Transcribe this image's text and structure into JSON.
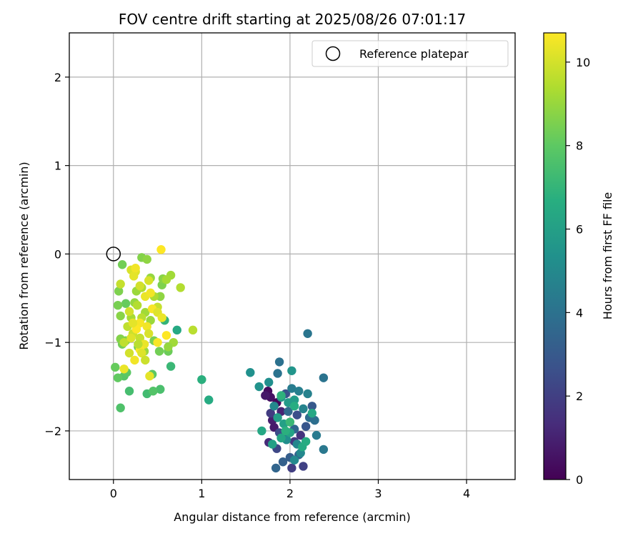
{
  "chart_data": {
    "type": "scatter",
    "title": "FOV centre drift starting at 2025/08/26 07:01:17",
    "xlabel": "Angular distance from reference (arcmin)",
    "ylabel": "Rotation from reference (arcmin)",
    "xlim": [
      -0.5,
      4.55
    ],
    "ylim": [
      -2.55,
      2.5
    ],
    "xticks": [
      "0",
      "1",
      "2",
      "3",
      "4"
    ],
    "yticks": [
      "−2",
      "−1",
      "0",
      "1",
      "2"
    ],
    "grid": true,
    "legend": {
      "placement": "upper right",
      "entries": [
        "Reference platepar"
      ]
    },
    "reference_point": {
      "x": 0,
      "y": 0,
      "label": "Reference platepar"
    },
    "colorbar": {
      "label": "Hours from first FF file",
      "colormap": "viridis",
      "range": [
        0,
        10.7
      ],
      "ticks": [
        "0",
        "2",
        "4",
        "6",
        "8",
        "10"
      ]
    },
    "points": [
      {
        "x": 1.75,
        "y": -1.55,
        "c": 0.3
      },
      {
        "x": 1.78,
        "y": -1.62,
        "c": 0.5
      },
      {
        "x": 1.72,
        "y": -1.6,
        "c": 0.7
      },
      {
        "x": 1.85,
        "y": -1.68,
        "c": 0.2
      },
      {
        "x": 1.8,
        "y": -1.88,
        "c": 0.9
      },
      {
        "x": 1.76,
        "y": -2.13,
        "c": 1.3
      },
      {
        "x": 1.82,
        "y": -1.96,
        "c": 0.8
      },
      {
        "x": 1.9,
        "y": -1.78,
        "c": 1.1
      },
      {
        "x": 1.95,
        "y": -2.05,
        "c": 1.5
      },
      {
        "x": 2.05,
        "y": -2.12,
        "c": 1.8
      },
      {
        "x": 2.12,
        "y": -2.05,
        "c": 1.6
      },
      {
        "x": 2.02,
        "y": -2.42,
        "c": 2.0
      },
      {
        "x": 2.15,
        "y": -2.4,
        "c": 2.1
      },
      {
        "x": 1.85,
        "y": -2.2,
        "c": 2.3
      },
      {
        "x": 1.88,
        "y": -2.02,
        "c": 2.5
      },
      {
        "x": 2.08,
        "y": -1.82,
        "c": 2.6
      },
      {
        "x": 1.95,
        "y": -1.58,
        "c": 2.8
      },
      {
        "x": 1.78,
        "y": -1.8,
        "c": 1.9
      },
      {
        "x": 2.18,
        "y": -1.95,
        "c": 2.9
      },
      {
        "x": 2.25,
        "y": -1.72,
        "c": 3.0
      },
      {
        "x": 2.0,
        "y": -2.3,
        "c": 3.2
      },
      {
        "x": 1.92,
        "y": -2.35,
        "c": 3.3
      },
      {
        "x": 2.1,
        "y": -2.27,
        "c": 3.4
      },
      {
        "x": 1.84,
        "y": -2.42,
        "c": 3.5
      },
      {
        "x": 2.05,
        "y": -1.98,
        "c": 3.6
      },
      {
        "x": 1.98,
        "y": -1.78,
        "c": 3.7
      },
      {
        "x": 2.22,
        "y": -1.85,
        "c": 3.8
      },
      {
        "x": 2.28,
        "y": -1.88,
        "c": 3.9
      },
      {
        "x": 1.88,
        "y": -1.22,
        "c": 4.0
      },
      {
        "x": 1.86,
        "y": -1.35,
        "c": 4.1
      },
      {
        "x": 2.2,
        "y": -0.9,
        "c": 4.2
      },
      {
        "x": 2.38,
        "y": -1.4,
        "c": 4.1
      },
      {
        "x": 2.38,
        "y": -2.21,
        "c": 4.3
      },
      {
        "x": 2.3,
        "y": -2.05,
        "c": 4.4
      },
      {
        "x": 2.02,
        "y": -1.52,
        "c": 4.5
      },
      {
        "x": 2.1,
        "y": -1.55,
        "c": 4.6
      },
      {
        "x": 2.2,
        "y": -1.58,
        "c": 4.7
      },
      {
        "x": 2.15,
        "y": -1.75,
        "c": 4.8
      },
      {
        "x": 2.08,
        "y": -2.15,
        "c": 4.9
      },
      {
        "x": 2.12,
        "y": -2.25,
        "c": 5.0
      },
      {
        "x": 2.05,
        "y": -2.33,
        "c": 5.1
      },
      {
        "x": 1.96,
        "y": -2.1,
        "c": 5.2
      },
      {
        "x": 1.82,
        "y": -1.72,
        "c": 5.0
      },
      {
        "x": 1.76,
        "y": -1.45,
        "c": 5.3
      },
      {
        "x": 1.55,
        "y": -1.34,
        "c": 5.4
      },
      {
        "x": 1.65,
        "y": -1.5,
        "c": 5.5
      },
      {
        "x": 2.02,
        "y": -1.32,
        "c": 5.6
      },
      {
        "x": 1.9,
        "y": -1.62,
        "c": 5.7
      },
      {
        "x": 1.98,
        "y": -1.68,
        "c": 5.8
      },
      {
        "x": 2.05,
        "y": -1.65,
        "c": 5.9
      },
      {
        "x": 1.86,
        "y": -1.85,
        "c": 6.0
      },
      {
        "x": 1.93,
        "y": -1.92,
        "c": 6.1
      },
      {
        "x": 2.0,
        "y": -2.02,
        "c": 6.2
      },
      {
        "x": 1.9,
        "y": -2.08,
        "c": 6.3
      },
      {
        "x": 1.8,
        "y": -2.15,
        "c": 6.1
      },
      {
        "x": 1.68,
        "y": -2.0,
        "c": 6.4
      },
      {
        "x": 2.14,
        "y": -2.18,
        "c": 6.5
      },
      {
        "x": 2.18,
        "y": -2.12,
        "c": 6.6
      },
      {
        "x": 2.25,
        "y": -1.8,
        "c": 6.4
      },
      {
        "x": 2.0,
        "y": -1.9,
        "c": 7.2
      },
      {
        "x": 1.95,
        "y": -2.0,
        "c": 6.8
      },
      {
        "x": 1.9,
        "y": -1.6,
        "c": 6.9
      },
      {
        "x": 2.05,
        "y": -1.72,
        "c": 6.7
      },
      {
        "x": 1.08,
        "y": -1.65,
        "c": 6.6
      },
      {
        "x": 1.0,
        "y": -1.42,
        "c": 6.8
      },
      {
        "x": 0.65,
        "y": -1.27,
        "c": 7.2
      },
      {
        "x": 0.72,
        "y": -0.86,
        "c": 6.5
      },
      {
        "x": 0.58,
        "y": -0.75,
        "c": 7.0
      },
      {
        "x": 0.38,
        "y": -1.58,
        "c": 7.4
      },
      {
        "x": 0.53,
        "y": -1.53,
        "c": 7.6
      },
      {
        "x": 0.45,
        "y": -1.55,
        "c": 7.8
      },
      {
        "x": 0.18,
        "y": -1.55,
        "c": 7.5
      },
      {
        "x": 0.08,
        "y": -1.74,
        "c": 7.7
      },
      {
        "x": 0.12,
        "y": -1.38,
        "c": 7.9
      },
      {
        "x": 0.15,
        "y": -1.34,
        "c": 8.0
      },
      {
        "x": 0.05,
        "y": -1.4,
        "c": 8.1
      },
      {
        "x": 0.02,
        "y": -1.28,
        "c": 8.2
      },
      {
        "x": 0.44,
        "y": -1.36,
        "c": 8.0
      },
      {
        "x": 0.62,
        "y": -1.1,
        "c": 8.3
      },
      {
        "x": 0.52,
        "y": -1.1,
        "c": 8.4
      },
      {
        "x": 0.46,
        "y": -0.98,
        "c": 8.5
      },
      {
        "x": 0.28,
        "y": -1.05,
        "c": 8.3
      },
      {
        "x": 0.14,
        "y": -0.98,
        "c": 8.6
      },
      {
        "x": 0.1,
        "y": -1.02,
        "c": 8.4
      },
      {
        "x": 0.08,
        "y": -0.96,
        "c": 8.7
      },
      {
        "x": 0.14,
        "y": -0.56,
        "c": 8.2
      },
      {
        "x": 0.05,
        "y": -0.58,
        "c": 8.5
      },
      {
        "x": 0.08,
        "y": -0.7,
        "c": 8.8
      },
      {
        "x": 0.06,
        "y": -0.42,
        "c": 8.6
      },
      {
        "x": 0.1,
        "y": -0.12,
        "c": 8.4
      },
      {
        "x": 0.32,
        "y": -0.04,
        "c": 8.7
      },
      {
        "x": 0.38,
        "y": -0.06,
        "c": 8.9
      },
      {
        "x": 0.42,
        "y": -0.27,
        "c": 9.0
      },
      {
        "x": 0.55,
        "y": -0.35,
        "c": 8.6
      },
      {
        "x": 0.56,
        "y": -0.28,
        "c": 8.8
      },
      {
        "x": 0.65,
        "y": -0.24,
        "c": 9.2
      },
      {
        "x": 0.53,
        "y": -0.48,
        "c": 8.9
      },
      {
        "x": 0.6,
        "y": -0.29,
        "c": 9.3
      },
      {
        "x": 0.26,
        "y": -0.42,
        "c": 9.1
      },
      {
        "x": 0.32,
        "y": -0.38,
        "c": 9.4
      },
      {
        "x": 0.24,
        "y": -0.55,
        "c": 9.0
      },
      {
        "x": 0.27,
        "y": -0.58,
        "c": 9.5
      },
      {
        "x": 0.36,
        "y": -0.66,
        "c": 9.2
      },
      {
        "x": 0.32,
        "y": -0.72,
        "c": 9.6
      },
      {
        "x": 0.2,
        "y": -0.72,
        "c": 9.3
      },
      {
        "x": 0.16,
        "y": -0.82,
        "c": 9.7
      },
      {
        "x": 0.42,
        "y": -0.75,
        "c": 9.1
      },
      {
        "x": 0.5,
        "y": -0.6,
        "c": 9.8
      },
      {
        "x": 0.46,
        "y": -0.48,
        "c": 9.4
      },
      {
        "x": 0.76,
        "y": -0.38,
        "c": 9.5
      },
      {
        "x": 0.9,
        "y": -0.86,
        "c": 9.6
      },
      {
        "x": 0.68,
        "y": -1.0,
        "c": 9.2
      },
      {
        "x": 0.62,
        "y": -1.05,
        "c": 9.0
      },
      {
        "x": 0.35,
        "y": -1.1,
        "c": 9.1
      },
      {
        "x": 0.3,
        "y": -0.95,
        "c": 9.8
      },
      {
        "x": 0.22,
        "y": -0.9,
        "c": 9.9
      },
      {
        "x": 0.18,
        "y": -1.12,
        "c": 10.0
      },
      {
        "x": 0.12,
        "y": -1.0,
        "c": 9.7
      },
      {
        "x": 0.08,
        "y": -0.34,
        "c": 9.8
      },
      {
        "x": 0.2,
        "y": -0.18,
        "c": 10.1
      },
      {
        "x": 0.25,
        "y": -0.2,
        "c": 10.2
      },
      {
        "x": 0.23,
        "y": -0.25,
        "c": 10.3
      },
      {
        "x": 0.3,
        "y": -0.36,
        "c": 10.0
      },
      {
        "x": 0.36,
        "y": -0.48,
        "c": 10.4
      },
      {
        "x": 0.42,
        "y": -0.44,
        "c": 10.5
      },
      {
        "x": 0.44,
        "y": -0.62,
        "c": 10.6
      },
      {
        "x": 0.5,
        "y": -0.66,
        "c": 10.2
      },
      {
        "x": 0.55,
        "y": -0.72,
        "c": 10.4
      },
      {
        "x": 0.54,
        "y": 0.05,
        "c": 10.7
      },
      {
        "x": 0.25,
        "y": -0.16,
        "c": 10.5
      },
      {
        "x": 0.3,
        "y": -0.78,
        "c": 10.6
      },
      {
        "x": 0.26,
        "y": -0.85,
        "c": 10.7
      },
      {
        "x": 0.22,
        "y": -0.78,
        "c": 10.3
      },
      {
        "x": 0.38,
        "y": -0.82,
        "c": 10.5
      },
      {
        "x": 0.4,
        "y": -0.9,
        "c": 10.1
      },
      {
        "x": 0.35,
        "y": -1.02,
        "c": 10.4
      },
      {
        "x": 0.3,
        "y": -1.08,
        "c": 10.6
      },
      {
        "x": 0.32,
        "y": -1.12,
        "c": 10.2
      },
      {
        "x": 0.24,
        "y": -1.2,
        "c": 10.5
      },
      {
        "x": 0.41,
        "y": -1.38,
        "c": 10.3
      },
      {
        "x": 0.12,
        "y": -1.3,
        "c": 10.4
      },
      {
        "x": 0.5,
        "y": -1.0,
        "c": 10.6
      },
      {
        "x": 0.6,
        "y": -0.92,
        "c": 10.7
      },
      {
        "x": 0.36,
        "y": -1.2,
        "c": 9.9
      },
      {
        "x": 0.2,
        "y": -0.95,
        "c": 10.2
      },
      {
        "x": 0.18,
        "y": -0.65,
        "c": 10.0
      },
      {
        "x": 0.4,
        "y": -0.3,
        "c": 10.1
      },
      {
        "x": 0.28,
        "y": -1.02,
        "c": 9.6
      }
    ]
  }
}
